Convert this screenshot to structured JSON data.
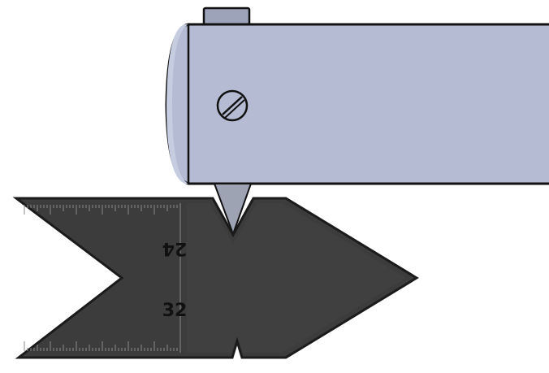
{
  "gauge": {
    "label_top": "24",
    "label_bottom": "32"
  },
  "colors": {
    "tool_body": "#b4bbd3",
    "tool_highlight": "#c7cde0",
    "outline": "#111111",
    "gauge_fill": "#3c3c3c",
    "gauge_edge": "#222222",
    "tick": "#777777"
  }
}
